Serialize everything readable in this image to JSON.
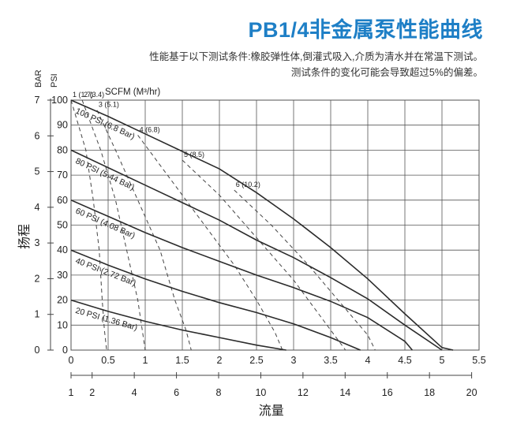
{
  "header": {
    "title": "PB1/4非金属泵性能曲线",
    "subtitle1": "性能基于以下测试条件:橡胶弹性体,倒灌式吸入,介质为清水并在常温下测试。",
    "subtitle2": "测试条件的变化可能会导致超过5%的偏差。"
  },
  "chart_data": {
    "type": "line",
    "xlim": [
      0,
      5.5
    ],
    "ylim": [
      0,
      100
    ],
    "grid": true,
    "x_ticks": [
      "0",
      "0.5",
      "1",
      "1.5",
      "2",
      "2.5",
      "3",
      "3.5",
      "4",
      "4.5",
      "5",
      "5.5"
    ],
    "x_tick_values": [
      0,
      0.5,
      1,
      1.5,
      2,
      2.5,
      3,
      3.5,
      4,
      4.5,
      5,
      5.5
    ],
    "x_axis_unit_label": "SCFM (M³/hr)",
    "x2_ticks": [
      "1",
      "2",
      "4",
      "6",
      "8",
      "10",
      "12",
      "14",
      "16",
      "18",
      "20"
    ],
    "x2_tick_values": [
      1,
      2,
      4,
      6,
      8,
      10,
      12,
      14,
      16,
      18,
      20
    ],
    "x2_range": [
      1,
      20
    ],
    "xlabel": "流量",
    "ylabel": "扬程",
    "y_ticks_psi": [
      "0",
      "10",
      "20",
      "30",
      "40",
      "50",
      "60",
      "70",
      "80",
      "90",
      "100"
    ],
    "y_tick_values_psi": [
      0,
      10,
      20,
      30,
      40,
      50,
      60,
      70,
      80,
      90,
      100
    ],
    "y_ticks_bar": [
      "0",
      "1",
      "2",
      "3",
      "4",
      "5",
      "6",
      "7"
    ],
    "y_tick_values_bar": [
      0,
      1,
      2,
      3,
      4,
      5,
      6,
      7
    ],
    "y_unit_psi": "PSI",
    "y_unit_bar": "BAR",
    "series": [
      {
        "name": "100 PSI (6.8 Bar)",
        "style": "solid",
        "x": [
          0,
          0.5,
          1,
          1.5,
          2,
          2.5,
          3,
          3.5,
          4,
          4.5,
          5,
          5.15
        ],
        "y": [
          100,
          93.5,
          86.5,
          79.5,
          72.5,
          63,
          52.5,
          41,
          28.5,
          14.5,
          1,
          0
        ]
      },
      {
        "name": "80 PSI (5.44 Bar)",
        "style": "solid",
        "x": [
          0,
          0.5,
          1,
          1.5,
          2,
          2.5,
          3,
          3.5,
          4,
          4.5,
          5
        ],
        "y": [
          80,
          73,
          66,
          59,
          52,
          44,
          37,
          29,
          20.5,
          10,
          0
        ]
      },
      {
        "name": "60 PSI (4.08 Bar)",
        "style": "solid",
        "x": [
          0,
          0.5,
          1,
          1.5,
          2,
          2.5,
          3,
          3.5,
          4,
          4.5,
          4.6
        ],
        "y": [
          60,
          53.5,
          47,
          41,
          35.5,
          30,
          25,
          19.5,
          13,
          3.5,
          0
        ]
      },
      {
        "name": "40 PSI (2.72 Bar)",
        "style": "solid",
        "x": [
          0,
          0.5,
          1,
          1.5,
          2,
          2.5,
          3,
          3.5,
          3.9
        ],
        "y": [
          40,
          34,
          28.5,
          23.5,
          19,
          15,
          10.5,
          5,
          0
        ]
      },
      {
        "name": "20 PSI (1.36 Bar)",
        "style": "solid",
        "x": [
          0,
          0.5,
          1,
          1.5,
          2,
          2.5,
          2.9
        ],
        "y": [
          20,
          15.5,
          11.5,
          8,
          5,
          2,
          0
        ]
      },
      {
        "name": "1 (1.7)",
        "style": "dashed",
        "x": [
          0,
          0.2,
          0.3,
          0.38,
          0.42,
          0.45,
          0.48
        ],
        "y": [
          100,
          80,
          60,
          40,
          20,
          8,
          0
        ]
      },
      {
        "name": "2 (3.4)",
        "style": "dashed",
        "x": [
          0.15,
          0.4,
          0.6,
          0.75,
          0.9,
          0.95,
          1.0
        ],
        "y": [
          100,
          80,
          60,
          40,
          20,
          10,
          0
        ]
      },
      {
        "name": "3 (5.1)",
        "style": "dashed",
        "x": [
          0.35,
          0.6,
          0.9,
          1.2,
          1.4,
          1.55,
          1.62
        ],
        "y": [
          96,
          80,
          60,
          40,
          20,
          8,
          0
        ]
      },
      {
        "name": "4 (6.8)",
        "style": "dashed",
        "x": [
          0.9,
          1.3,
          1.75,
          2.2,
          2.5,
          2.75,
          2.85
        ],
        "y": [
          86,
          70,
          52,
          34,
          20,
          7,
          0
        ]
      },
      {
        "name": "5 (8.5)",
        "style": "dashed",
        "x": [
          1.5,
          2.0,
          2.5,
          3.0,
          3.4,
          3.7
        ],
        "y": [
          76,
          62,
          45,
          28,
          12,
          0
        ]
      },
      {
        "name": "6 (10.2)",
        "style": "dashed",
        "x": [
          2.2,
          2.7,
          3.2,
          3.6,
          4.0,
          4.1
        ],
        "y": [
          64,
          50,
          34,
          20,
          6,
          0
        ]
      }
    ]
  }
}
